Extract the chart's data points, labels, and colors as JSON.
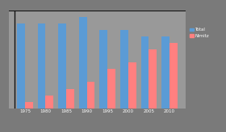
{
  "years": [
    1975,
    1980,
    1985,
    1990,
    1995,
    2000,
    2005,
    2010
  ],
  "total_carriers": [
    13,
    13,
    13,
    14,
    12,
    12,
    11,
    11
  ],
  "nimitz_carriers": [
    1,
    2,
    3,
    4,
    6,
    7,
    9,
    10
  ],
  "bar_color_total": "#5B9BD5",
  "bar_color_nimitz": "#FF8080",
  "background_color": "#7A7A7A",
  "plot_bg_color": "#999999",
  "legend_label_total": "Total",
  "legend_label_nimitz": "Nimitz",
  "ylim": [
    0,
    15
  ],
  "bar_width": 0.38,
  "top_line_color": "#111111"
}
